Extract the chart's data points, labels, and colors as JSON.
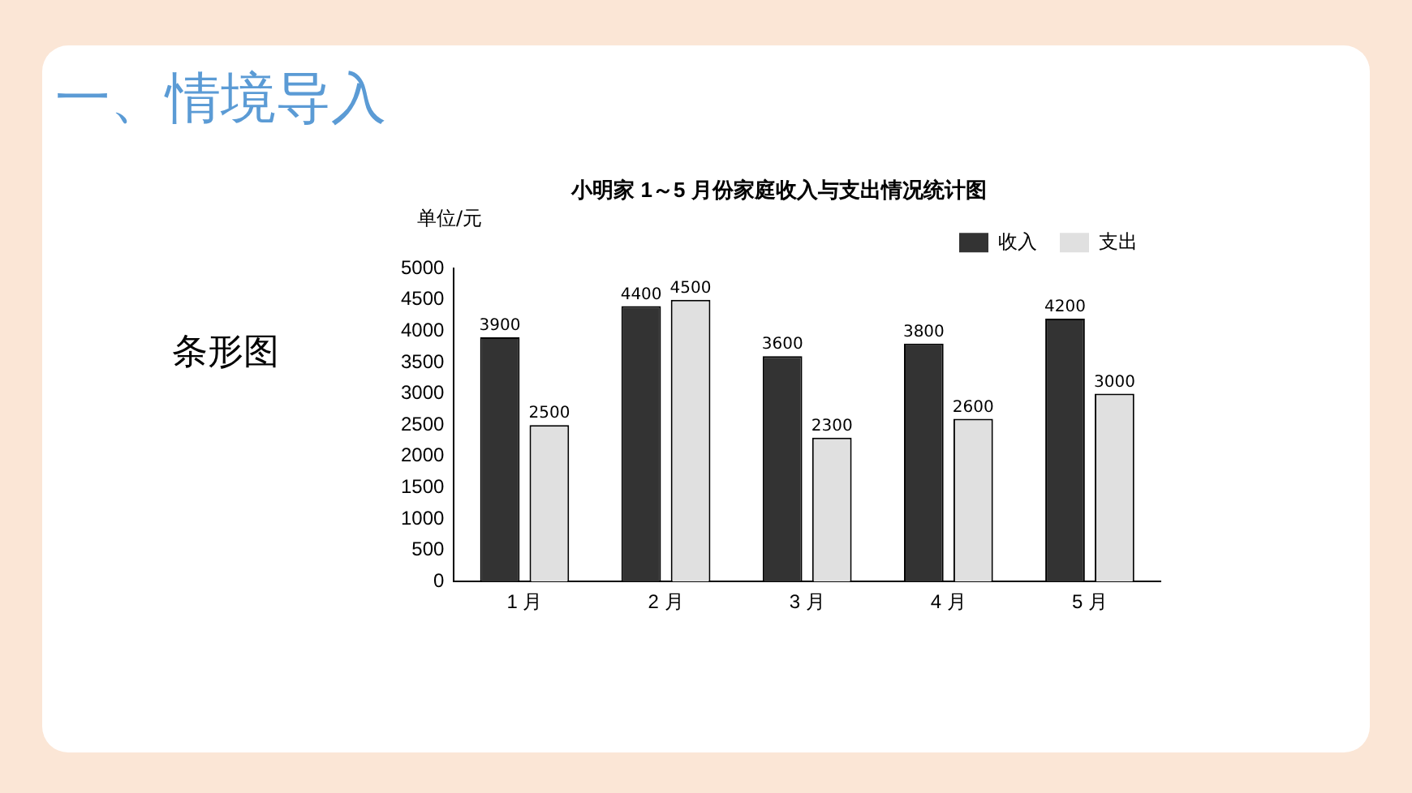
{
  "chart_data": {
    "type": "bar",
    "title": "小明家 1～5 月份家庭收入与支出情况统计图",
    "ylabel": "单位/元",
    "annotations": [
      "一、情境导入",
      "条形图"
    ],
    "categories": [
      "1 月",
      "2 月",
      "3 月",
      "4 月",
      "5 月"
    ],
    "series": [
      {
        "name": "收入",
        "color": "#333333",
        "values": [
          3900,
          4400,
          3600,
          3800,
          4200
        ]
      },
      {
        "name": "支出",
        "color": "#e0e0e0",
        "values": [
          2500,
          4500,
          2300,
          2600,
          3000
        ]
      }
    ],
    "ylim": [
      0,
      5000
    ],
    "yticks": [
      0,
      500,
      1000,
      1500,
      2000,
      2500,
      3000,
      3500,
      4000,
      4500,
      5000
    ],
    "grid": false,
    "legend": "top right",
    "data_labels": true
  }
}
